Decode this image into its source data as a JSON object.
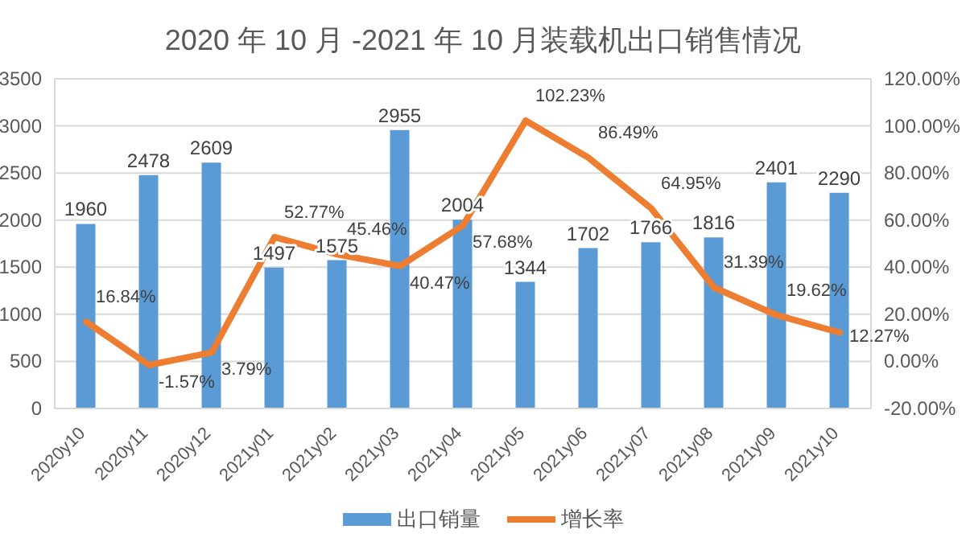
{
  "chart_data": {
    "type": "bar",
    "title": "2020 年 10 月 -2021 年 10 月装载机出口销售情况",
    "categories": [
      "2020y10",
      "2020y11",
      "2020y12",
      "2021y01",
      "2021y02",
      "2021y03",
      "2021y04",
      "2021y05",
      "2021y06",
      "2021y07",
      "2021y08",
      "2021y09",
      "2021y10"
    ],
    "series": [
      {
        "name": "出口销量",
        "color": "#5b9bd5",
        "values": [
          1960,
          2478,
          2609,
          1497,
          1575,
          2955,
          2004,
          1344,
          1702,
          1766,
          1816,
          2401,
          2290
        ],
        "value_labels": [
          "1960",
          "2478",
          "2609",
          "1497",
          "1575",
          "2955",
          "2004",
          "1344",
          "1702",
          "1766",
          "1816",
          "2401",
          "2290"
        ]
      },
      {
        "name": "增长率",
        "type": "line",
        "axis": "y2",
        "color": "#ed7d31",
        "values": [
          16.84,
          -1.57,
          3.79,
          52.77,
          45.46,
          40.47,
          57.68,
          102.23,
          86.49,
          64.95,
          31.39,
          19.62,
          12.27
        ],
        "value_labels": [
          "16.84%",
          "-1.57%",
          "3.79%",
          "52.77%",
          "45.46%",
          "40.47%",
          "57.68%",
          "102.23%",
          "86.49%",
          "64.95%",
          "31.39%",
          "19.62%",
          "12.27%"
        ]
      }
    ],
    "ylim": [
      0,
      3500
    ],
    "yticks": [
      0,
      500,
      1000,
      1500,
      2000,
      2500,
      3000,
      3500
    ],
    "y2lim": [
      -20,
      120
    ],
    "y2ticks": [
      {
        "value": -20,
        "label": "-20.00%"
      },
      {
        "value": 0,
        "label": "0.00%"
      },
      {
        "value": 20,
        "label": "20.00%"
      },
      {
        "value": 40,
        "label": "40.00%"
      },
      {
        "value": 60,
        "label": "60.00%"
      },
      {
        "value": 80,
        "label": "80.00%"
      },
      {
        "value": 100,
        "label": "100.00%"
      },
      {
        "value": 120,
        "label": "120.00%"
      }
    ],
    "grid": "y",
    "legend": "bottom"
  }
}
